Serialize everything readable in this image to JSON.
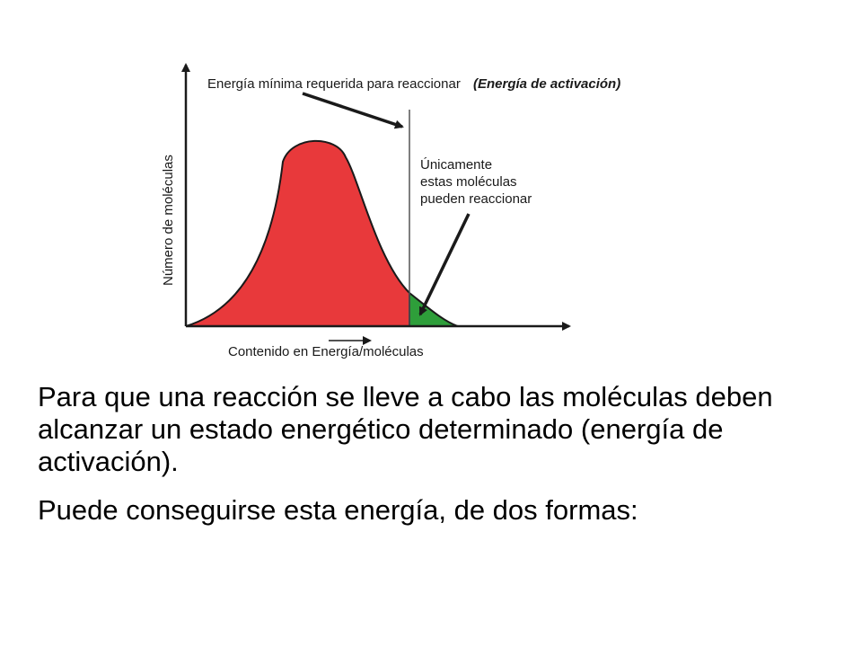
{
  "diagram": {
    "top_label": "Energía mínima requerida para reaccionar",
    "top_label_emphasis": "(Energía de activación)",
    "side_note_lines": [
      "Únicamente",
      "estas moléculas",
      "pueden reaccionar"
    ],
    "y_axis_label": "Número de moléculas",
    "x_axis_label": "Contenido en Energía/moléculas",
    "colors": {
      "curve_fill": "#e8393b",
      "tail_fill": "#2e9e3a",
      "line": "#1a1a1a"
    }
  },
  "text": {
    "paragraph_1": "Para que una reacción se lleve a cabo las moléculas deben alcanzar un estado energético determinado (energía de activación).",
    "paragraph_2": "Puede conseguirse esta energía, de dos formas:"
  }
}
